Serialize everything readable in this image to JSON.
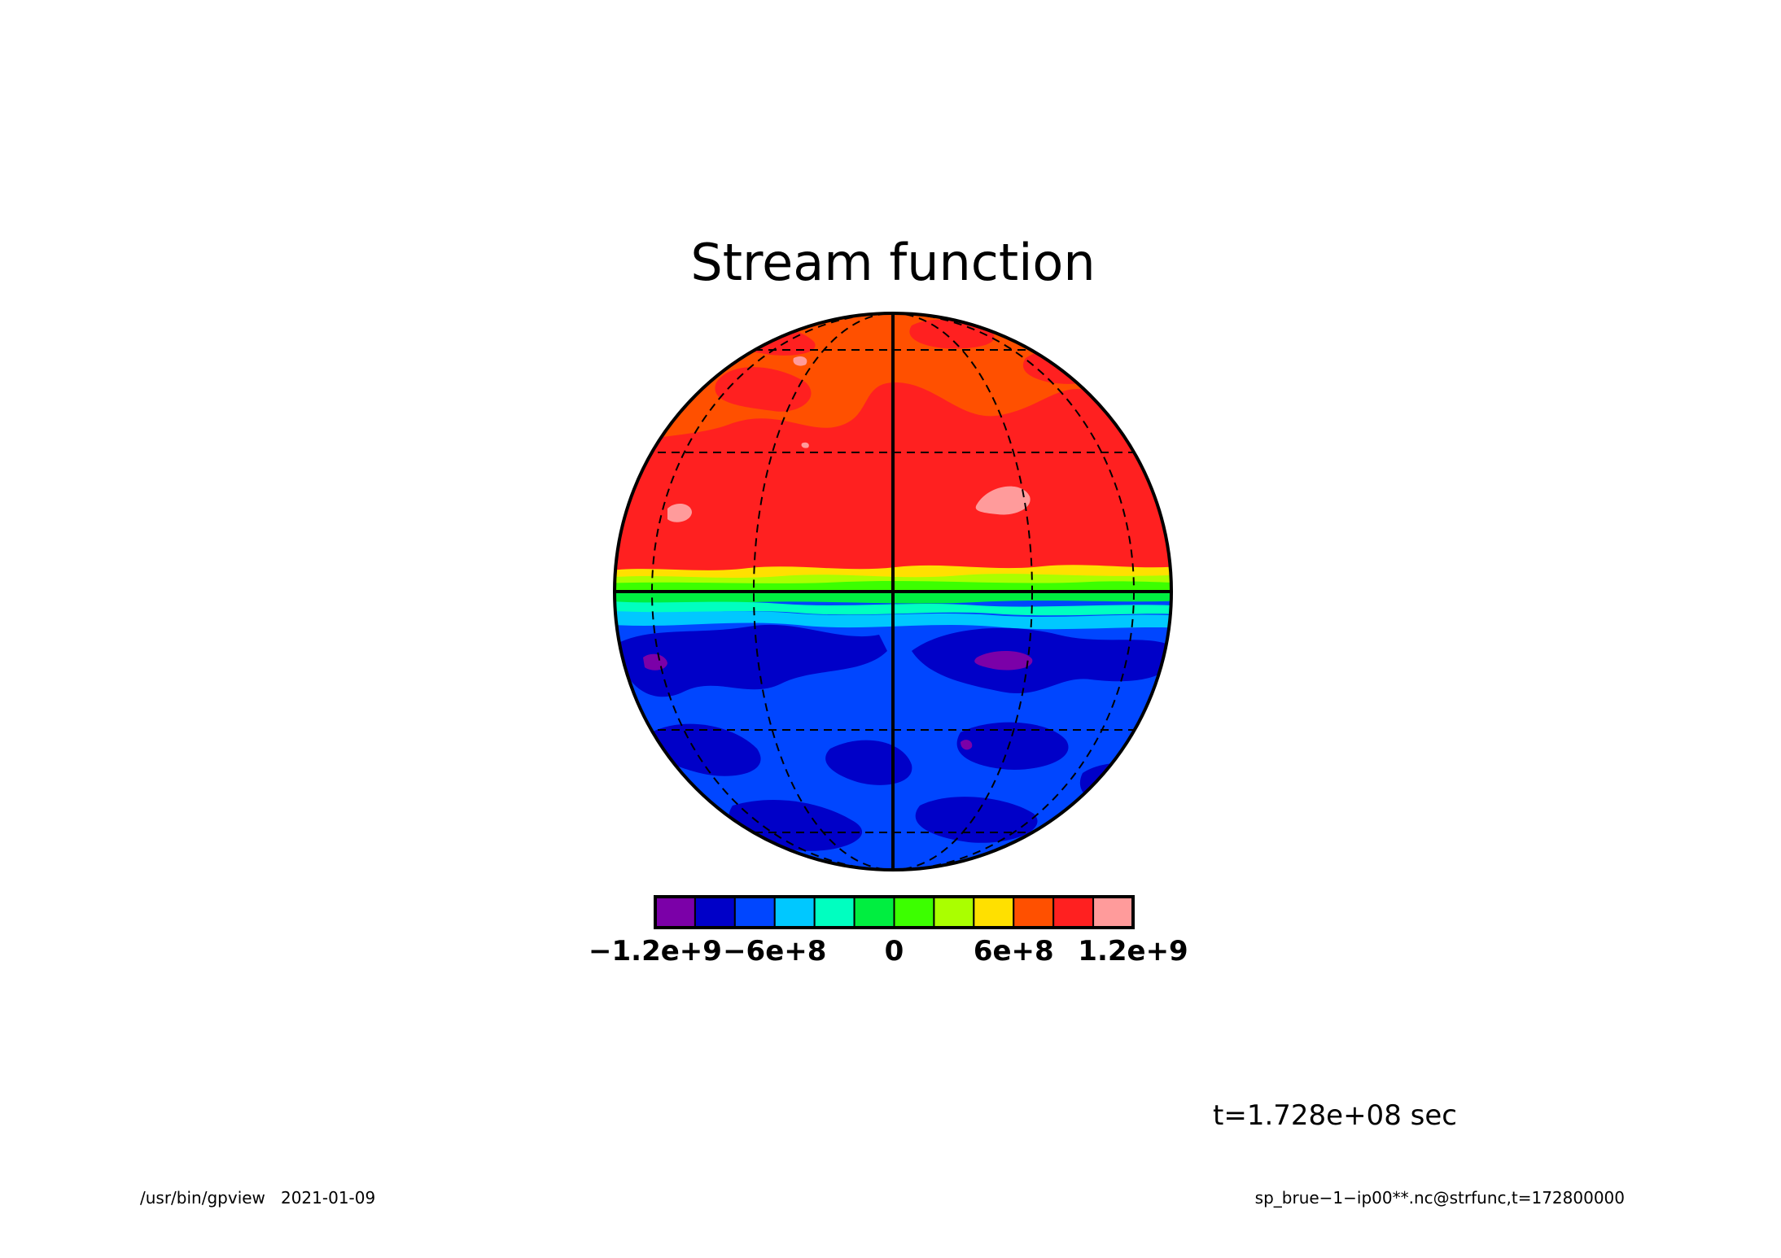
{
  "chart_data": {
    "type": "heatmap",
    "title": "Stream function",
    "projection": "orthographic",
    "grid": true,
    "colorbar": {
      "orientation": "horizontal",
      "position": "bottom",
      "levels": [
        -1200000000.0,
        -1000000000.0,
        -800000000.0,
        -600000000.0,
        -400000000.0,
        -200000000.0,
        0,
        200000000.0,
        400000000.0,
        600000000.0,
        800000000.0,
        1000000000.0,
        1200000000.0
      ],
      "colors": [
        "#7b00a8",
        "#0000c8",
        "#0046ff",
        "#00c8ff",
        "#00ffc0",
        "#00ee40",
        "#3cff00",
        "#aaff00",
        "#ffe000",
        "#ff5000",
        "#ff2020",
        "#ff9b9b"
      ],
      "tick_labels": [
        "−1.2e+9",
        "−6e+8",
        "0",
        "6e+8",
        "1.2e+9"
      ],
      "tick_values": [
        -1200000000.0,
        -600000000.0,
        0,
        600000000.0,
        1200000000.0
      ]
    },
    "field_summary": {
      "northern_hemisphere_range": [
        800000000.0,
        1200000000.0
      ],
      "southern_hemisphere_range": [
        -1200000000.0,
        -800000000.0
      ],
      "equatorial_transition": true
    }
  },
  "annotations": {
    "time_label": "t=1.728e+08 sec",
    "footer_left": "/usr/bin/gpview   2021-01-09",
    "footer_right": "sp_brue−1−ip00**.nc@strfunc,t=172800000"
  },
  "colors": {
    "background": "#ffffff",
    "outline": "#000000"
  }
}
